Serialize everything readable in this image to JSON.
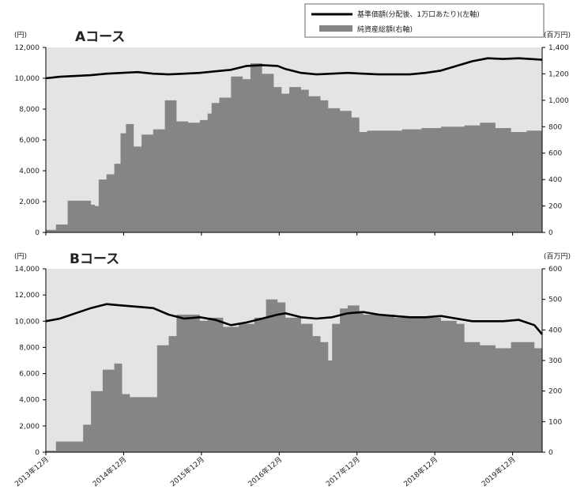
{
  "legend": {
    "nav_label": "基準価額(分配後、1万口あたり)(左軸)",
    "assets_label": "純資産総額(右軸)"
  },
  "colors": {
    "panel_bg": "#e4e4e4",
    "area_fill": "#858585",
    "nav_line": "#000000",
    "axis": "#000000"
  },
  "x_labels": [
    "2013年12月",
    "2014年12月",
    "2015年12月",
    "2016年12月",
    "2017年12月",
    "2018年12月",
    "2019年12月"
  ],
  "chart_data": [
    {
      "type": "line",
      "title": "Aコース",
      "left_unit": "(円)",
      "right_unit": "(百万円)",
      "xlim": [
        2013.92,
        2020.3
      ],
      "ylim_left": [
        0,
        12000
      ],
      "ylim_right": [
        0,
        1400
      ],
      "left_ticks": [
        0,
        2000,
        4000,
        6000,
        8000,
        10000,
        12000
      ],
      "left_tick_labels": [
        "0",
        "2,000",
        "4,000",
        "6,000",
        "8,000",
        "10,000",
        "12,000"
      ],
      "right_ticks": [
        0,
        200,
        400,
        600,
        800,
        1000,
        1200,
        1400
      ],
      "right_tick_labels": [
        "0",
        "200",
        "400",
        "600",
        "800",
        "1,000",
        "1,200",
        "1,400"
      ],
      "series": [
        {
          "name": "基準価額(分配後、1万口あたり)(左軸)",
          "axis": "left",
          "x": [
            2013.92,
            2014.1,
            2014.3,
            2014.5,
            2014.7,
            2014.9,
            2015.1,
            2015.3,
            2015.5,
            2015.7,
            2015.9,
            2016.1,
            2016.3,
            2016.5,
            2016.7,
            2016.9,
            2017.0,
            2017.2,
            2017.4,
            2017.6,
            2017.8,
            2018.0,
            2018.2,
            2018.4,
            2018.6,
            2018.8,
            2019.0,
            2019.2,
            2019.4,
            2019.6,
            2019.8,
            2020.0,
            2020.3
          ],
          "y": [
            10000,
            10100,
            10150,
            10200,
            10300,
            10350,
            10400,
            10300,
            10250,
            10300,
            10350,
            10450,
            10550,
            10800,
            10850,
            10800,
            10600,
            10350,
            10250,
            10300,
            10350,
            10300,
            10250,
            10250,
            10250,
            10350,
            10500,
            10800,
            11100,
            11300,
            11250,
            11300,
            11200
          ]
        },
        {
          "name": "純資産総額(右軸)",
          "axis": "right",
          "x": [
            2013.92,
            2014.05,
            2014.2,
            2014.3,
            2014.4,
            2014.5,
            2014.55,
            2014.6,
            2014.7,
            2014.8,
            2014.88,
            2014.95,
            2015.05,
            2015.15,
            2015.3,
            2015.45,
            2015.6,
            2015.75,
            2015.9,
            2016.0,
            2016.05,
            2016.15,
            2016.3,
            2016.45,
            2016.55,
            2016.7,
            2016.85,
            2016.95,
            2017.05,
            2017.2,
            2017.3,
            2017.45,
            2017.55,
            2017.7,
            2017.85,
            2017.95,
            2018.05,
            2018.25,
            2018.5,
            2018.75,
            2019.0,
            2019.3,
            2019.5,
            2019.7,
            2019.9,
            2020.1,
            2020.3
          ],
          "y": [
            20,
            60,
            240,
            240,
            240,
            210,
            200,
            400,
            440,
            520,
            750,
            820,
            650,
            740,
            780,
            1000,
            840,
            830,
            850,
            900,
            980,
            1020,
            1180,
            1160,
            1280,
            1200,
            1100,
            1050,
            1100,
            1080,
            1030,
            1000,
            940,
            920,
            870,
            760,
            770,
            770,
            780,
            790,
            800,
            810,
            830,
            790,
            760,
            770,
            790
          ]
        }
      ]
    },
    {
      "type": "line",
      "title": "Bコース",
      "left_unit": "(円)",
      "right_unit": "(百万円)",
      "xlim": [
        2013.92,
        2020.3
      ],
      "ylim_left": [
        0,
        14000
      ],
      "ylim_right": [
        0,
        600
      ],
      "left_ticks": [
        0,
        2000,
        4000,
        6000,
        8000,
        10000,
        12000,
        14000
      ],
      "left_tick_labels": [
        "0",
        "2,000",
        "4,000",
        "6,000",
        "8,000",
        "10,000",
        "12,000",
        "14,000"
      ],
      "right_ticks": [
        0,
        100,
        200,
        300,
        400,
        500,
        600
      ],
      "right_tick_labels": [
        "0",
        "100",
        "200",
        "300",
        "400",
        "500",
        "600"
      ],
      "series": [
        {
          "name": "基準価額(分配後、1万口あたり)(左軸)",
          "axis": "left",
          "x": [
            2013.92,
            2014.1,
            2014.3,
            2014.5,
            2014.7,
            2014.9,
            2015.1,
            2015.3,
            2015.5,
            2015.7,
            2015.9,
            2016.1,
            2016.3,
            2016.5,
            2016.7,
            2016.9,
            2017.0,
            2017.2,
            2017.4,
            2017.6,
            2017.8,
            2018.0,
            2018.2,
            2018.4,
            2018.6,
            2018.8,
            2019.0,
            2019.2,
            2019.4,
            2019.6,
            2019.8,
            2020.0,
            2020.2,
            2020.3
          ],
          "y": [
            10000,
            10200,
            10600,
            11000,
            11300,
            11200,
            11100,
            11000,
            10500,
            10200,
            10300,
            10100,
            9700,
            9900,
            10200,
            10500,
            10600,
            10300,
            10200,
            10300,
            10600,
            10700,
            10500,
            10400,
            10300,
            10300,
            10400,
            10200,
            10000,
            10000,
            10000,
            10100,
            9700,
            9000
          ]
        },
        {
          "name": "純資産総額(右軸)",
          "axis": "right",
          "x": [
            2013.92,
            2014.05,
            2014.3,
            2014.4,
            2014.5,
            2014.65,
            2014.8,
            2014.9,
            2015.0,
            2015.2,
            2015.35,
            2015.5,
            2015.6,
            2015.75,
            2015.9,
            2016.0,
            2016.2,
            2016.4,
            2016.6,
            2016.75,
            2016.9,
            2017.0,
            2017.2,
            2017.35,
            2017.45,
            2017.55,
            2017.6,
            2017.7,
            2017.8,
            2017.95,
            2018.0,
            2018.2,
            2018.4,
            2018.6,
            2018.8,
            2019.0,
            2019.2,
            2019.3,
            2019.5,
            2019.7,
            2019.9,
            2020.1,
            2020.2,
            2020.3
          ],
          "y": [
            5,
            35,
            35,
            90,
            200,
            270,
            290,
            190,
            180,
            180,
            350,
            380,
            450,
            450,
            430,
            440,
            410,
            420,
            440,
            500,
            490,
            440,
            420,
            380,
            360,
            300,
            420,
            470,
            480,
            460,
            450,
            450,
            440,
            440,
            440,
            430,
            420,
            360,
            350,
            340,
            360,
            360,
            340,
            250
          ]
        }
      ]
    }
  ]
}
